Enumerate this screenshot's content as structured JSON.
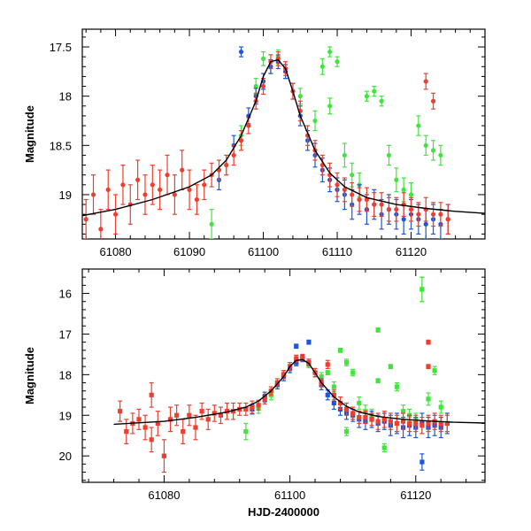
{
  "chart_data": [
    {
      "type": "scatter",
      "panel": "top",
      "title": "",
      "xlabel": "",
      "ylabel": "Magnitude",
      "xlim": [
        61075.5,
        61130
      ],
      "ylim": [
        19.45,
        17.32
      ],
      "y_inverted": true,
      "xticks": [
        61080,
        61090,
        61100,
        61110,
        61120
      ],
      "xtick_labels": [
        "61080",
        "61090",
        "61100",
        "61110",
        "61120"
      ],
      "yticks": [
        17.5,
        18,
        18.5,
        19
      ],
      "ytick_labels": [
        "17.5",
        "18",
        "18.5",
        "19"
      ],
      "series": [
        {
          "name": "red",
          "color": "#ee3f2e",
          "x": [
            61076,
            61077,
            61078,
            61079,
            61080,
            61081,
            61082,
            61083,
            61084,
            61085,
            61086,
            61087,
            61088,
            61089,
            61090,
            61091,
            61092,
            61093,
            61094,
            61095,
            61096,
            61097,
            61098,
            61099,
            61100,
            61101,
            61102,
            61103,
            61104,
            61105,
            61106,
            61107,
            61108,
            61109,
            61110,
            61111,
            61112,
            61113,
            61114,
            61115,
            61116,
            61117,
            61118,
            61119,
            61120,
            61121,
            61122,
            61123,
            61124,
            61125,
            61122,
            61123
          ],
          "y": [
            19.25,
            19.0,
            19.35,
            18.95,
            19.2,
            18.9,
            19.1,
            18.85,
            19.0,
            18.9,
            18.95,
            18.8,
            19.0,
            18.75,
            18.95,
            19.05,
            18.9,
            18.8,
            18.75,
            18.7,
            18.6,
            18.45,
            18.3,
            18.05,
            17.9,
            17.65,
            17.62,
            17.72,
            17.95,
            18.15,
            18.4,
            18.55,
            18.7,
            18.8,
            18.9,
            18.95,
            19.0,
            19.05,
            19.05,
            19.1,
            19.1,
            19.15,
            19.15,
            19.1,
            19.15,
            19.2,
            19.15,
            19.2,
            19.2,
            19.25,
            17.85,
            18.05
          ],
          "yerr": [
            0.2,
            0.2,
            0.2,
            0.2,
            0.2,
            0.2,
            0.2,
            0.2,
            0.2,
            0.2,
            0.2,
            0.2,
            0.2,
            0.2,
            0.2,
            0.15,
            0.15,
            0.12,
            0.1,
            0.1,
            0.1,
            0.1,
            0.08,
            0.08,
            0.08,
            0.07,
            0.07,
            0.07,
            0.08,
            0.1,
            0.1,
            0.1,
            0.1,
            0.12,
            0.12,
            0.12,
            0.12,
            0.12,
            0.12,
            0.12,
            0.12,
            0.12,
            0.12,
            0.12,
            0.12,
            0.12,
            0.12,
            0.12,
            0.12,
            0.15,
            0.08,
            0.08
          ]
        },
        {
          "name": "blue",
          "color": "#1f56d6",
          "x": [
            61094,
            61096,
            61098,
            61099,
            61100,
            61101,
            61102,
            61103,
            61104,
            61105,
            61106,
            61107,
            61108,
            61109,
            61110,
            61111,
            61112,
            61113,
            61114,
            61115,
            61116,
            61117,
            61118,
            61119,
            61120,
            61121,
            61122,
            61123,
            61124,
            61125,
            61097
          ],
          "y": [
            18.85,
            18.5,
            18.2,
            18.0,
            17.85,
            17.7,
            17.65,
            17.75,
            17.95,
            18.2,
            18.45,
            18.6,
            18.75,
            18.85,
            18.95,
            19.0,
            19.1,
            19.05,
            19.15,
            19.1,
            19.2,
            19.15,
            19.2,
            19.25,
            19.2,
            19.25,
            19.3,
            19.25,
            19.3,
            19.25,
            17.55
          ],
          "yerr": [
            0.1,
            0.1,
            0.08,
            0.08,
            0.08,
            0.07,
            0.07,
            0.07,
            0.08,
            0.1,
            0.1,
            0.12,
            0.12,
            0.12,
            0.12,
            0.15,
            0.15,
            0.15,
            0.15,
            0.15,
            0.15,
            0.15,
            0.15,
            0.15,
            0.15,
            0.15,
            0.15,
            0.15,
            0.15,
            0.15,
            0.05
          ]
        },
        {
          "name": "green",
          "color": "#40e53b",
          "x": [
            61093,
            61095,
            61097,
            61099,
            61101,
            61103,
            61105,
            61107,
            61109,
            61110,
            61111,
            61112,
            61113,
            61114,
            61115,
            61116,
            61117,
            61118,
            61119,
            61120,
            61121,
            61122,
            61123,
            61124,
            61100,
            61102,
            61108,
            61109
          ],
          "y": [
            19.3,
            18.7,
            18.4,
            17.9,
            17.7,
            17.75,
            18.0,
            18.25,
            17.55,
            17.65,
            18.6,
            18.8,
            18.9,
            18.0,
            17.95,
            18.05,
            18.6,
            18.85,
            18.95,
            19.0,
            18.3,
            18.5,
            18.55,
            18.6,
            17.62,
            17.6,
            17.7,
            18.1
          ],
          "yerr": [
            0.15,
            0.1,
            0.1,
            0.08,
            0.07,
            0.07,
            0.08,
            0.1,
            0.05,
            0.05,
            0.12,
            0.12,
            0.12,
            0.05,
            0.05,
            0.05,
            0.1,
            0.12,
            0.12,
            0.12,
            0.1,
            0.1,
            0.1,
            0.1,
            0.07,
            0.07,
            0.08,
            0.08
          ]
        }
      ],
      "model_curve": {
        "name": "model",
        "color": "#000000",
        "x": [
          61075,
          61080,
          61085,
          61090,
          61093,
          61095,
          61097,
          61099,
          61100,
          61101,
          61102,
          61103,
          61104,
          61105,
          61107,
          61109,
          61111,
          61114,
          61118,
          61122,
          61126,
          61130
        ],
        "y": [
          19.22,
          19.15,
          19.05,
          18.92,
          18.8,
          18.65,
          18.4,
          18.05,
          17.8,
          17.65,
          17.63,
          17.72,
          17.95,
          18.2,
          18.55,
          18.78,
          18.92,
          19.03,
          19.1,
          19.14,
          19.17,
          19.19
        ]
      }
    },
    {
      "type": "scatter",
      "panel": "bottom",
      "title": "",
      "xlabel": "HJD-2400000",
      "ylabel": "Magnitude",
      "xlim": [
        61067,
        61131
      ],
      "ylim": [
        20.65,
        15.4
      ],
      "y_inverted": true,
      "xticks": [
        61080,
        61100,
        61120
      ],
      "xtick_labels": [
        "61080",
        "61100",
        "61120"
      ],
      "yticks": [
        16,
        17,
        18,
        19,
        20
      ],
      "ytick_labels": [
        "16",
        "17",
        "18",
        "19",
        "20"
      ],
      "series": [
        {
          "name": "red",
          "color": "#ee3f2e",
          "x": [
            61073,
            61074,
            61075,
            61076,
            61077,
            61078,
            61079,
            61080,
            61081,
            61082,
            61083,
            61084,
            61085,
            61086,
            61087,
            61088,
            61089,
            61090,
            61091,
            61092,
            61093,
            61094,
            61095,
            61096,
            61097,
            61098,
            61099,
            61100,
            61101,
            61102,
            61103,
            61104,
            61105,
            61106,
            61107,
            61108,
            61109,
            61110,
            61111,
            61112,
            61113,
            61114,
            61115,
            61116,
            61117,
            61118,
            61119,
            61120,
            61121,
            61122,
            61123,
            61124,
            61125,
            61078,
            61122,
            61122
          ],
          "y": [
            18.9,
            19.4,
            19.2,
            19.1,
            19.3,
            19.6,
            19.2,
            20.0,
            19.1,
            19.0,
            19.4,
            19.0,
            19.3,
            18.9,
            19.1,
            18.95,
            19.0,
            18.9,
            18.9,
            18.85,
            18.85,
            18.8,
            18.75,
            18.6,
            18.4,
            18.2,
            18.0,
            17.8,
            17.6,
            17.58,
            17.7,
            17.95,
            18.2,
            17.75,
            18.5,
            18.7,
            18.85,
            18.95,
            19.05,
            19.05,
            19.1,
            19.15,
            19.1,
            19.15,
            19.2,
            19.15,
            19.2,
            19.2,
            19.25,
            19.2,
            19.15,
            19.2,
            19.2,
            18.5,
            17.2,
            17.8
          ],
          "yerr": [
            0.25,
            0.3,
            0.25,
            0.25,
            0.3,
            0.3,
            0.3,
            0.4,
            0.3,
            0.25,
            0.3,
            0.25,
            0.3,
            0.2,
            0.25,
            0.2,
            0.2,
            0.2,
            0.2,
            0.15,
            0.15,
            0.15,
            0.12,
            0.12,
            0.1,
            0.1,
            0.1,
            0.1,
            0.08,
            0.08,
            0.08,
            0.1,
            0.1,
            0.1,
            0.12,
            0.15,
            0.15,
            0.15,
            0.15,
            0.15,
            0.15,
            0.2,
            0.2,
            0.2,
            0.2,
            0.2,
            0.2,
            0.2,
            0.2,
            0.2,
            0.2,
            0.2,
            0.2,
            0.3,
            0.05,
            0.05
          ]
        },
        {
          "name": "blue",
          "color": "#1f56d6",
          "x": [
            61094,
            61096,
            61098,
            61099,
            61100,
            61101,
            61102,
            61103,
            61104,
            61105,
            61106,
            61107,
            61108,
            61109,
            61110,
            61111,
            61112,
            61113,
            61114,
            61115,
            61116,
            61117,
            61118,
            61119,
            61120,
            61121,
            61122,
            61123,
            61124,
            61125,
            61121,
            61101,
            61103
          ],
          "y": [
            18.85,
            18.55,
            18.25,
            18.05,
            17.85,
            17.7,
            17.6,
            17.7,
            17.95,
            18.25,
            18.5,
            18.7,
            18.85,
            18.95,
            19.0,
            19.1,
            19.15,
            19.1,
            19.2,
            19.15,
            19.25,
            19.2,
            19.3,
            19.25,
            19.3,
            19.2,
            19.3,
            19.25,
            19.3,
            19.2,
            20.15,
            17.3,
            17.2
          ],
          "yerr": [
            0.12,
            0.12,
            0.1,
            0.1,
            0.1,
            0.08,
            0.08,
            0.08,
            0.1,
            0.12,
            0.12,
            0.15,
            0.15,
            0.15,
            0.15,
            0.2,
            0.2,
            0.2,
            0.2,
            0.2,
            0.25,
            0.25,
            0.25,
            0.25,
            0.25,
            0.25,
            0.25,
            0.25,
            0.25,
            0.25,
            0.2,
            0.05,
            0.05
          ]
        },
        {
          "name": "green",
          "color": "#40e53b",
          "x": [
            61093,
            61095,
            61097,
            61099,
            61101,
            61103,
            61105,
            61107,
            61109,
            61110,
            61111,
            61112,
            61113,
            61114,
            61115,
            61116,
            61117,
            61118,
            61119,
            61120,
            61121,
            61122,
            61123,
            61124,
            61121,
            61114,
            61109,
            61106,
            61108
          ],
          "y": [
            19.4,
            18.8,
            18.5,
            18.0,
            17.7,
            17.75,
            18.05,
            18.3,
            17.7,
            17.95,
            18.7,
            18.9,
            19.0,
            16.9,
            19.8,
            17.8,
            18.3,
            18.9,
            19.0,
            19.1,
            15.9,
            18.6,
            17.9,
            18.8,
            15.9,
            18.15,
            19.4,
            17.95,
            17.4
          ],
          "yerr": [
            0.2,
            0.15,
            0.12,
            0.1,
            0.08,
            0.08,
            0.1,
            0.12,
            0.08,
            0.08,
            0.15,
            0.15,
            0.15,
            0.05,
            0.1,
            0.05,
            0.1,
            0.15,
            0.15,
            0.15,
            0.3,
            0.15,
            0.1,
            0.15,
            0.3,
            0.05,
            0.1,
            0.05,
            0.05
          ]
        }
      ],
      "model_curve": {
        "name": "model",
        "color": "#000000",
        "x": [
          61072,
          61080,
          61085,
          61090,
          61093,
          61095,
          61097,
          61099,
          61100,
          61101,
          61102,
          61103,
          61104,
          61105,
          61107,
          61109,
          61111,
          61114,
          61118,
          61122,
          61126,
          61131
        ],
        "y": [
          19.22,
          19.15,
          19.05,
          18.92,
          18.8,
          18.65,
          18.4,
          18.05,
          17.8,
          17.65,
          17.63,
          17.72,
          17.95,
          18.2,
          18.55,
          18.78,
          18.92,
          19.03,
          19.1,
          19.14,
          19.17,
          19.19
        ]
      }
    }
  ]
}
